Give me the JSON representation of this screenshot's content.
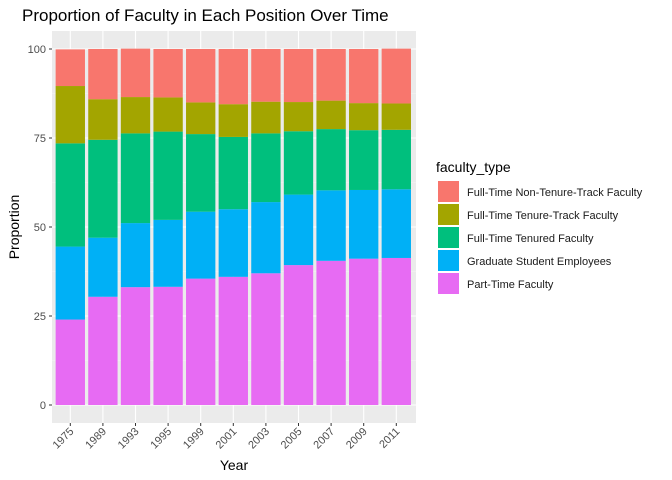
{
  "chart_data": {
    "type": "bar",
    "stacked": true,
    "title": "Proportion of Faculty in Each Position Over Time",
    "xlabel": "Year",
    "ylabel": "Proportion",
    "ylim": [
      0,
      100
    ],
    "yticks": [
      0,
      25,
      50,
      75,
      100
    ],
    "grid": true,
    "legend_title": "faculty_type",
    "legend_position": "right",
    "categories": [
      "1975",
      "1989",
      "1993",
      "1995",
      "1999",
      "2001",
      "2003",
      "2005",
      "2007",
      "2009",
      "2011"
    ],
    "series": [
      {
        "name": "Part-Time Faculty",
        "color": "#E76BF3",
        "values": [
          24.0,
          30.4,
          33.1,
          33.2,
          35.5,
          36.0,
          37.0,
          39.3,
          40.5,
          41.1,
          41.3
        ]
      },
      {
        "name": "Graduate Student Employees",
        "color": "#00B0F6",
        "values": [
          20.5,
          16.6,
          18.0,
          18.8,
          18.8,
          19.0,
          20.0,
          19.8,
          19.8,
          19.3,
          19.3
        ]
      },
      {
        "name": "Full-Time Tenured Faculty",
        "color": "#00BF7D",
        "values": [
          29.0,
          27.5,
          25.2,
          24.8,
          21.8,
          20.3,
          19.3,
          17.8,
          17.2,
          16.8,
          16.7
        ]
      },
      {
        "name": "Full-Time Tenure-Track Faculty",
        "color": "#A3A500",
        "values": [
          16.1,
          11.4,
          10.2,
          9.6,
          8.9,
          9.2,
          8.9,
          8.2,
          8.0,
          7.6,
          7.4
        ]
      },
      {
        "name": "Full-Time Non-Tenure-Track Faculty",
        "color": "#F8766D",
        "values": [
          10.3,
          14.1,
          13.6,
          13.6,
          15.0,
          15.5,
          14.8,
          14.9,
          14.5,
          15.2,
          15.4
        ]
      }
    ],
    "legend_order": [
      "Full-Time Non-Tenure-Track Faculty",
      "Full-Time Tenure-Track Faculty",
      "Full-Time Tenured Faculty",
      "Graduate Student Employees",
      "Part-Time Faculty"
    ],
    "colors": {
      "panel_background": "#EBEBEB",
      "grid_major": "#FFFFFF",
      "grid_minor": "#F5F5F5"
    }
  }
}
